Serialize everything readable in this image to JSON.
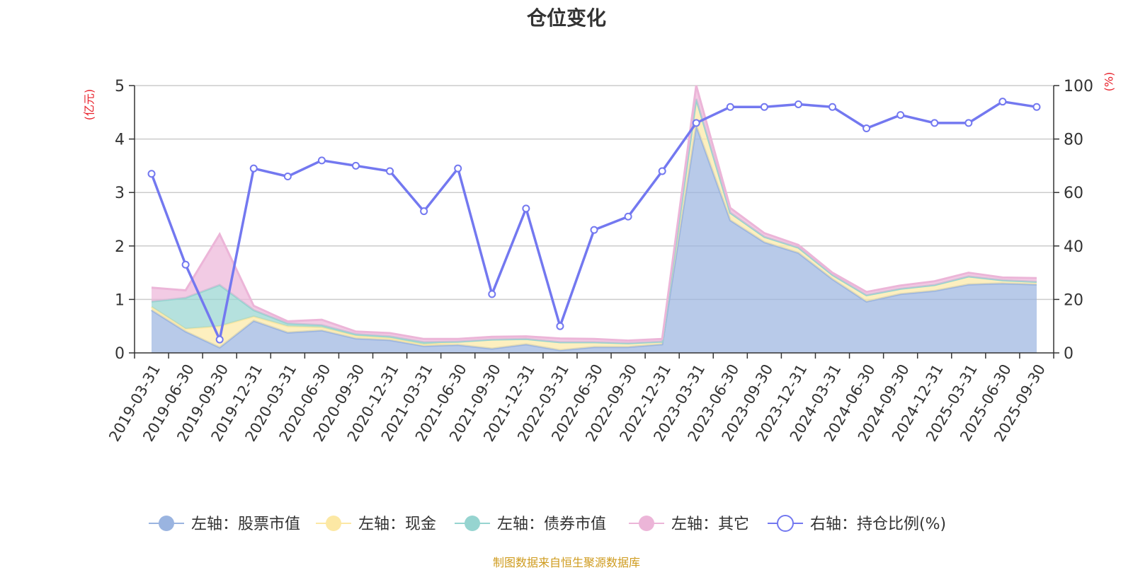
{
  "chart_data": {
    "type": "area",
    "title": "仓位变化",
    "source": "制图数据来自恒生聚源数据库",
    "y_left_label": "(亿元)",
    "y_right_label": "(%)",
    "y_left_lim": [
      0,
      5
    ],
    "y_left_ticks": [
      "0",
      "1",
      "2",
      "3",
      "4",
      "5"
    ],
    "y_right_lim": [
      0,
      100
    ],
    "y_right_ticks": [
      "0",
      "20",
      "40",
      "60",
      "80",
      "100"
    ],
    "grid": true,
    "legend_position": "bottom",
    "x": [
      "2019-03-31",
      "2019-06-30",
      "2019-09-30",
      "2019-12-31",
      "2020-03-31",
      "2020-06-30",
      "2020-09-30",
      "2020-12-31",
      "2021-03-31",
      "2021-06-30",
      "2021-09-30",
      "2021-12-31",
      "2022-03-31",
      "2022-06-30",
      "2022-09-30",
      "2022-12-31",
      "2023-03-31",
      "2023-06-30",
      "2023-09-30",
      "2023-12-31",
      "2024-03-31",
      "2024-06-30",
      "2024-09-30",
      "2024-12-31",
      "2025-03-31",
      "2025-06-30",
      "2025-09-30"
    ],
    "series": [
      {
        "name": "左轴：股票市值",
        "axis": "left",
        "stacked": true,
        "color": "#9ab4e0",
        "values": [
          0.8,
          0.4,
          0.1,
          0.6,
          0.38,
          0.42,
          0.27,
          0.24,
          0.13,
          0.15,
          0.08,
          0.16,
          0.05,
          0.11,
          0.11,
          0.16,
          4.25,
          2.48,
          2.07,
          1.87,
          1.38,
          0.96,
          1.1,
          1.16,
          1.28,
          1.3,
          1.28
        ]
      },
      {
        "name": "左轴：现金",
        "axis": "left",
        "stacked": true,
        "color": "#fce8a4",
        "values": [
          0.06,
          0.05,
          0.4,
          0.08,
          0.12,
          0.06,
          0.05,
          0.04,
          0.03,
          0.06,
          0.17,
          0.1,
          0.15,
          0.09,
          0.07,
          0.05,
          0.5,
          0.14,
          0.1,
          0.1,
          0.08,
          0.12,
          0.1,
          0.11,
          0.15,
          0.06,
          0.05
        ]
      },
      {
        "name": "左轴：债券市值",
        "axis": "left",
        "stacked": true,
        "color": "#96d4d0",
        "values": [
          0.1,
          0.58,
          0.77,
          0.12,
          0.05,
          0.04,
          0.03,
          0.03,
          0.04,
          0.0,
          0.0,
          0.0,
          0.0,
          0.0,
          0.0,
          0.0,
          0.0,
          0.0,
          0.0,
          0.0,
          0.0,
          0.0,
          0.0,
          0.0,
          0.0,
          0.0,
          0.0
        ]
      },
      {
        "name": "左轴：其它",
        "axis": "left",
        "stacked": true,
        "color": "#ecb5d8",
        "values": [
          0.26,
          0.14,
          0.95,
          0.08,
          0.04,
          0.1,
          0.05,
          0.06,
          0.06,
          0.05,
          0.05,
          0.05,
          0.07,
          0.06,
          0.05,
          0.05,
          0.25,
          0.09,
          0.07,
          0.05,
          0.04,
          0.06,
          0.06,
          0.07,
          0.07,
          0.05,
          0.07
        ]
      },
      {
        "name": "右轴：持仓比例(%)",
        "axis": "right",
        "type": "line",
        "color": "#7378f0",
        "values": [
          67,
          33,
          5,
          69,
          66,
          72,
          70,
          68,
          53,
          69,
          22,
          54,
          10,
          46,
          51,
          68,
          86,
          92,
          92,
          93,
          92,
          84,
          89,
          86,
          86,
          94,
          92
        ]
      }
    ]
  }
}
